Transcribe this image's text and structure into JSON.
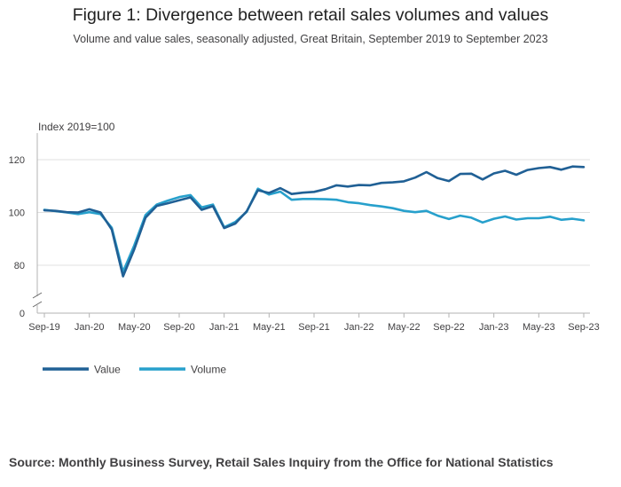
{
  "title": "Figure 1: Divergence between retail sales volumes and values",
  "subtitle": "Volume and value sales, seasonally adjusted, Great Britain, September 2019 to September 2023",
  "source": "Source: Monthly Business Survey, Retail Sales Inquiry from the Office for National Statistics",
  "chart_data": {
    "type": "line",
    "ylabel": "Index 2019=100",
    "yticks": [
      0,
      80,
      100,
      120
    ],
    "axis_break": true,
    "ylim": [
      0,
      130
    ],
    "grid": "horizontal",
    "legend_position": "bottom-left",
    "x_tick_labels": [
      "Sep-19",
      "Jan-20",
      "May-20",
      "Sep-20",
      "Jan-21",
      "May-21",
      "Sep-21",
      "Jan-22",
      "May-22",
      "Sep-22",
      "Jan-23",
      "May-23",
      "Sep-23"
    ],
    "x": [
      "Sep-19",
      "Oct-19",
      "Nov-19",
      "Dec-19",
      "Jan-20",
      "Feb-20",
      "Mar-20",
      "Apr-20",
      "May-20",
      "Jun-20",
      "Jul-20",
      "Aug-20",
      "Sep-20",
      "Oct-20",
      "Nov-20",
      "Dec-20",
      "Jan-21",
      "Feb-21",
      "Mar-21",
      "Apr-21",
      "May-21",
      "Jun-21",
      "Jul-21",
      "Aug-21",
      "Sep-21",
      "Oct-21",
      "Nov-21",
      "Dec-21",
      "Jan-22",
      "Feb-22",
      "Mar-22",
      "Apr-22",
      "May-22",
      "Jun-22",
      "Jul-22",
      "Aug-22",
      "Sep-22",
      "Oct-22",
      "Nov-22",
      "Dec-22",
      "Jan-23",
      "Feb-23",
      "Mar-23",
      "Apr-23",
      "May-23",
      "Jun-23",
      "Jul-23",
      "Aug-23",
      "Sep-23"
    ],
    "series": [
      {
        "name": "Value",
        "color": "#206095",
        "values": [
          100.8,
          100.6,
          100.1,
          100.0,
          101.2,
          100.0,
          93.5,
          75.8,
          86.0,
          98.0,
          102.5,
          103.5,
          104.6,
          105.7,
          101.0,
          102.4,
          94.1,
          95.8,
          100.4,
          108.4,
          107.4,
          109.2,
          107.0,
          107.5,
          107.8,
          108.8,
          110.3,
          109.8,
          110.4,
          110.3,
          111.2,
          111.4,
          111.8,
          113.2,
          115.3,
          113.0,
          111.9,
          114.6,
          114.7,
          112.5,
          114.8,
          115.8,
          114.3,
          116.1,
          116.8,
          117.2,
          116.2,
          117.4,
          117.2
        ]
      },
      {
        "name": "Volume",
        "color": "#27a0cc",
        "values": [
          101.0,
          100.5,
          100.0,
          99.4,
          100.1,
          99.4,
          94.2,
          77.5,
          87.5,
          99.0,
          103.0,
          104.5,
          105.8,
          106.6,
          101.9,
          103.0,
          94.4,
          96.4,
          100.2,
          109.0,
          106.8,
          107.9,
          104.8,
          105.1,
          105.1,
          105.0,
          104.8,
          103.9,
          103.5,
          102.8,
          102.3,
          101.6,
          100.6,
          100.1,
          100.6,
          98.8,
          97.5,
          98.8,
          98.0,
          96.2,
          97.6,
          98.5,
          97.3,
          97.8,
          97.8,
          98.4,
          97.2,
          97.6,
          97.0
        ]
      }
    ]
  }
}
